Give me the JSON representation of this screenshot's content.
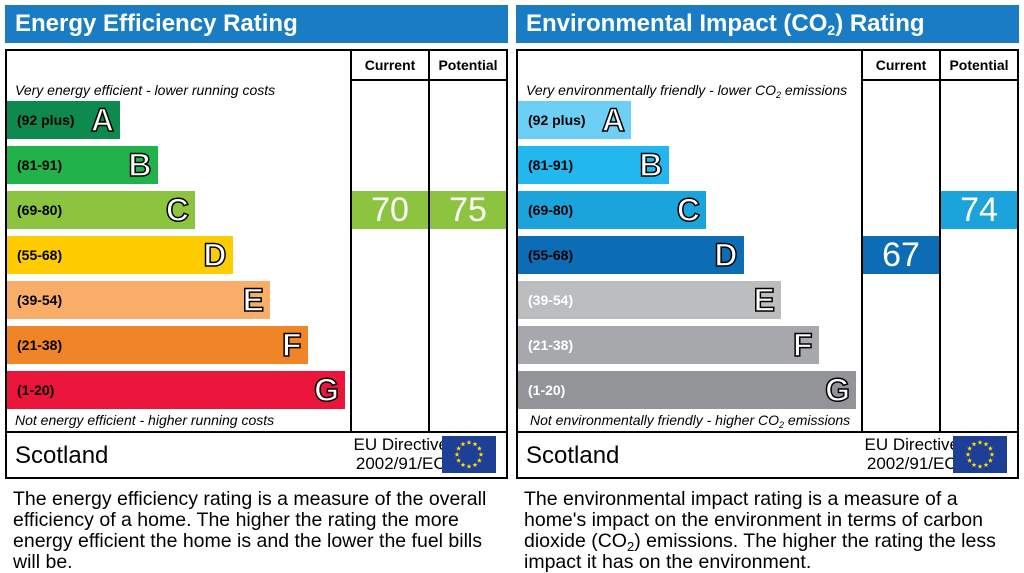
{
  "colors": {
    "title_bar": "#1a7dc4",
    "energy_bands": [
      "#0f8a4e",
      "#21b24b",
      "#8cc43f",
      "#ffcc00",
      "#f8ae69",
      "#f08528",
      "#e9153b"
    ],
    "environment_bands": [
      "#6dcff6",
      "#22b7ef",
      "#1ba3dc",
      "#0c6db5",
      "#bbbdbf",
      "#a6a8ab",
      "#929497"
    ]
  },
  "chart_data": [
    {
      "type": "bar",
      "title": "Energy Efficiency Rating",
      "columns": [
        "Current",
        "Potential"
      ],
      "top_note": "Very energy efficient - lower running costs",
      "bottom_note": "Not energy efficient - higher running costs",
      "bands": [
        {
          "letter": "A",
          "range": "(92 plus)",
          "min": 92,
          "max": 100
        },
        {
          "letter": "B",
          "range": "(81-91)",
          "min": 81,
          "max": 91
        },
        {
          "letter": "C",
          "range": "(69-80)",
          "min": 69,
          "max": 80
        },
        {
          "letter": "D",
          "range": "(55-68)",
          "min": 55,
          "max": 68
        },
        {
          "letter": "E",
          "range": "(39-54)",
          "min": 39,
          "max": 54
        },
        {
          "letter": "F",
          "range": "(21-38)",
          "min": 21,
          "max": 38
        },
        {
          "letter": "G",
          "range": "(1-20)",
          "min": 1,
          "max": 20
        }
      ],
      "current": {
        "value": 70,
        "band": "C"
      },
      "potential": {
        "value": 75,
        "band": "C"
      }
    },
    {
      "type": "bar",
      "title": "Environmental Impact (CO2) Rating",
      "columns": [
        "Current",
        "Potential"
      ],
      "top_note": "Very environmentally friendly - lower CO2 emissions",
      "bottom_note": "Not environmentally friendly - higher CO2 emissions",
      "bands": [
        {
          "letter": "A",
          "range": "(92 plus)",
          "min": 92,
          "max": 100
        },
        {
          "letter": "B",
          "range": "(81-91)",
          "min": 81,
          "max": 91
        },
        {
          "letter": "C",
          "range": "(69-80)",
          "min": 69,
          "max": 80
        },
        {
          "letter": "D",
          "range": "(55-68)",
          "min": 55,
          "max": 68
        },
        {
          "letter": "E",
          "range": "(39-54)",
          "min": 39,
          "max": 54
        },
        {
          "letter": "F",
          "range": "(21-38)",
          "min": 21,
          "max": 38
        },
        {
          "letter": "G",
          "range": "(1-20)",
          "min": 1,
          "max": 20
        }
      ],
      "current": {
        "value": 67,
        "band": "D"
      },
      "potential": {
        "value": 74,
        "band": "C"
      }
    }
  ],
  "energy": {
    "title": "Energy Efficiency Rating",
    "col_current": "Current",
    "col_potential": "Potential",
    "top_note": "Very energy efficient - lower running costs",
    "bottom_note": "Not energy efficient - higher running costs",
    "region": "Scotland",
    "directive_line1": "EU Directive",
    "directive_line2": "2002/91/EC",
    "description": "The energy efficiency rating is a measure of the overall efficiency of a home. The higher the rating the more energy efficient the home is and the lower the fuel bills will be."
  },
  "environment": {
    "title_pre": "Environmental Impact (CO",
    "title_sub": "2",
    "title_post": ") Rating",
    "col_current": "Current",
    "col_potential": "Potential",
    "top_note_pre": "Very environmentally friendly - lower CO",
    "top_note_sub": "2",
    "top_note_post": " emissions",
    "bottom_note_pre": "Not environmentally friendly - higher CO",
    "bottom_note_sub": "2",
    "bottom_note_post": " emissions",
    "region": "Scotland",
    "directive_line1": "EU Directive",
    "directive_line2": "2002/91/EC",
    "desc_pre": "The environmental impact rating is a measure of a home's impact on the environment in terms of carbon dioxide (CO",
    "desc_sub": "2",
    "desc_post": ") emissions. The higher the rating the less impact it has on the environment."
  }
}
